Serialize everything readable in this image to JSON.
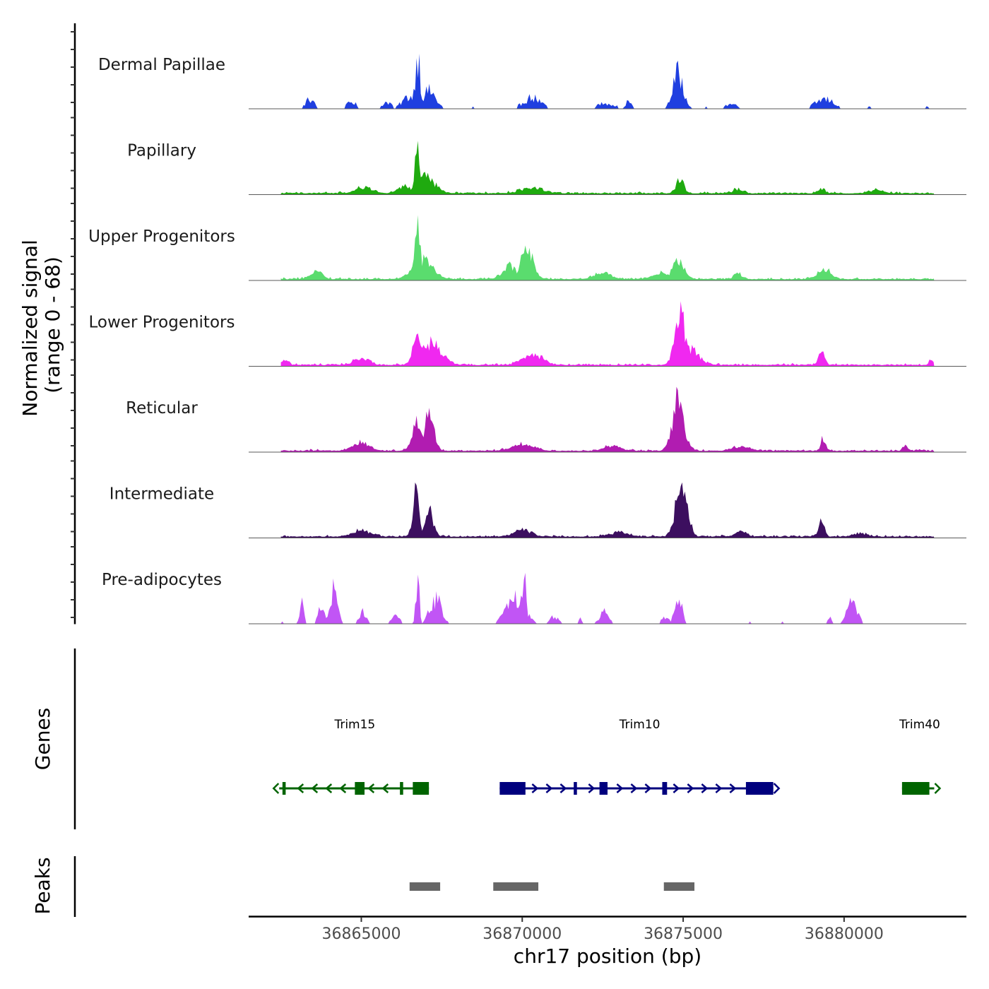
{
  "chart_data": {
    "type": "coverage-track",
    "y_axis": {
      "title_line1": "Normalized signal",
      "title_line2": "(range 0 - 68)",
      "range": [
        0,
        68
      ]
    },
    "x_axis": {
      "title": "chr17 position (bp)",
      "range": [
        36861500,
        36883800
      ],
      "ticks": [
        {
          "value": 36865000,
          "label": "36865000"
        },
        {
          "value": 36870000,
          "label": "36870000"
        },
        {
          "value": 36875000,
          "label": "36875000"
        },
        {
          "value": 36880000,
          "label": "36880000"
        }
      ]
    },
    "data_start": 36862500,
    "data_end": 36882800,
    "tracks": [
      {
        "name": "Dermal Papillae",
        "color": "#1f3fe0",
        "sparse": true,
        "peaks": [
          {
            "pos": 36866750,
            "h": 1.0,
            "w": 80
          },
          {
            "pos": 36866500,
            "h": 0.22,
            "w": 220
          },
          {
            "pos": 36867100,
            "h": 0.32,
            "w": 200
          },
          {
            "pos": 36874850,
            "h": 0.62,
            "w": 170
          },
          {
            "pos": 36863400,
            "h": 0.17,
            "w": 130
          },
          {
            "pos": 36864700,
            "h": 0.12,
            "w": 140
          },
          {
            "pos": 36865800,
            "h": 0.12,
            "w": 140
          },
          {
            "pos": 36870300,
            "h": 0.2,
            "w": 260
          },
          {
            "pos": 36872600,
            "h": 0.1,
            "w": 260
          },
          {
            "pos": 36873300,
            "h": 0.13,
            "w": 90
          },
          {
            "pos": 36876500,
            "h": 0.08,
            "w": 200
          },
          {
            "pos": 36879400,
            "h": 0.17,
            "w": 280
          },
          {
            "pos": 36882600,
            "h": 0.05,
            "w": 60
          }
        ]
      },
      {
        "name": "Papillary",
        "color": "#1faa0f",
        "sparse": false,
        "peaks": [
          {
            "pos": 36866750,
            "h": 1.0,
            "w": 70
          },
          {
            "pos": 36867000,
            "h": 0.3,
            "w": 280
          },
          {
            "pos": 36866350,
            "h": 0.12,
            "w": 200
          },
          {
            "pos": 36865100,
            "h": 0.1,
            "w": 260
          },
          {
            "pos": 36870300,
            "h": 0.11,
            "w": 320
          },
          {
            "pos": 36874900,
            "h": 0.28,
            "w": 110
          },
          {
            "pos": 36876700,
            "h": 0.08,
            "w": 140
          },
          {
            "pos": 36879300,
            "h": 0.09,
            "w": 90
          },
          {
            "pos": 36881000,
            "h": 0.06,
            "w": 200
          }
        ]
      },
      {
        "name": "Upper Progenitors",
        "color": "#5adc6e",
        "sparse": false,
        "peaks": [
          {
            "pos": 36866750,
            "h": 0.95,
            "w": 90
          },
          {
            "pos": 36866900,
            "h": 0.35,
            "w": 300
          },
          {
            "pos": 36870150,
            "h": 0.52,
            "w": 190
          },
          {
            "pos": 36869600,
            "h": 0.22,
            "w": 220
          },
          {
            "pos": 36863600,
            "h": 0.18,
            "w": 160
          },
          {
            "pos": 36874850,
            "h": 0.3,
            "w": 190
          },
          {
            "pos": 36874300,
            "h": 0.1,
            "w": 220
          },
          {
            "pos": 36876700,
            "h": 0.11,
            "w": 120
          },
          {
            "pos": 36879400,
            "h": 0.17,
            "w": 200
          },
          {
            "pos": 36872500,
            "h": 0.11,
            "w": 260
          }
        ]
      },
      {
        "name": "Lower Progenitors",
        "color": "#f028f0",
        "sparse": false,
        "peaks": [
          {
            "pos": 36874900,
            "h": 1.0,
            "w": 150
          },
          {
            "pos": 36875200,
            "h": 0.3,
            "w": 260
          },
          {
            "pos": 36866750,
            "h": 0.54,
            "w": 140
          },
          {
            "pos": 36867200,
            "h": 0.4,
            "w": 300
          },
          {
            "pos": 36870300,
            "h": 0.2,
            "w": 300
          },
          {
            "pos": 36879300,
            "h": 0.23,
            "w": 90
          },
          {
            "pos": 36865000,
            "h": 0.13,
            "w": 220
          },
          {
            "pos": 36862650,
            "h": 0.1,
            "w": 90
          },
          {
            "pos": 36882700,
            "h": 0.09,
            "w": 70
          }
        ]
      },
      {
        "name": "Reticular",
        "color": "#b11cb1",
        "sparse": false,
        "peaks": [
          {
            "pos": 36874850,
            "h": 0.95,
            "w": 170
          },
          {
            "pos": 36866700,
            "h": 0.56,
            "w": 130
          },
          {
            "pos": 36867100,
            "h": 0.65,
            "w": 150
          },
          {
            "pos": 36879350,
            "h": 0.24,
            "w": 70
          },
          {
            "pos": 36881900,
            "h": 0.12,
            "w": 70
          },
          {
            "pos": 36865000,
            "h": 0.15,
            "w": 260
          },
          {
            "pos": 36870000,
            "h": 0.12,
            "w": 320
          },
          {
            "pos": 36872800,
            "h": 0.09,
            "w": 240
          },
          {
            "pos": 36876800,
            "h": 0.08,
            "w": 240
          }
        ]
      },
      {
        "name": "Intermediate",
        "color": "#3c0f5f",
        "sparse": false,
        "peaks": [
          {
            "pos": 36874950,
            "h": 1.0,
            "w": 170
          },
          {
            "pos": 36866700,
            "h": 0.77,
            "w": 100
          },
          {
            "pos": 36867100,
            "h": 0.5,
            "w": 130
          },
          {
            "pos": 36879300,
            "h": 0.37,
            "w": 80
          },
          {
            "pos": 36865000,
            "h": 0.12,
            "w": 260
          },
          {
            "pos": 36870000,
            "h": 0.13,
            "w": 260
          },
          {
            "pos": 36873000,
            "h": 0.08,
            "w": 260
          },
          {
            "pos": 36876800,
            "h": 0.1,
            "w": 160
          },
          {
            "pos": 36880500,
            "h": 0.06,
            "w": 200
          }
        ]
      },
      {
        "name": "Pre-adipocytes",
        "color": "#c155f5",
        "sparse": true,
        "peaks": [
          {
            "pos": 36866750,
            "h": 0.98,
            "w": 50
          },
          {
            "pos": 36867300,
            "h": 0.45,
            "w": 180
          },
          {
            "pos": 36870050,
            "h": 0.86,
            "w": 60
          },
          {
            "pos": 36869800,
            "h": 0.45,
            "w": 280
          },
          {
            "pos": 36864150,
            "h": 0.62,
            "w": 110
          },
          {
            "pos": 36863750,
            "h": 0.36,
            "w": 90
          },
          {
            "pos": 36863150,
            "h": 0.35,
            "w": 60
          },
          {
            "pos": 36865050,
            "h": 0.22,
            "w": 110
          },
          {
            "pos": 36866050,
            "h": 0.12,
            "w": 140
          },
          {
            "pos": 36874850,
            "h": 0.48,
            "w": 110
          },
          {
            "pos": 36874450,
            "h": 0.12,
            "w": 110
          },
          {
            "pos": 36872550,
            "h": 0.22,
            "w": 130
          },
          {
            "pos": 36871800,
            "h": 0.1,
            "w": 60
          },
          {
            "pos": 36880250,
            "h": 0.36,
            "w": 160
          },
          {
            "pos": 36879550,
            "h": 0.1,
            "w": 60
          },
          {
            "pos": 36871000,
            "h": 0.12,
            "w": 140
          }
        ]
      }
    ],
    "genes": {
      "title": "Genes",
      "items": [
        {
          "name": "Trim15",
          "strand": "-",
          "start": 36862450,
          "end": 36867100,
          "color": "#006400",
          "label_pos": 36864800,
          "exons": [
            [
              36862550,
              36862650
            ],
            [
              36864800,
              36865100
            ],
            [
              36866200,
              36866300
            ],
            [
              36866600,
              36867100
            ]
          ]
        },
        {
          "name": "Trim10",
          "strand": "+",
          "start": 36869300,
          "end": 36877800,
          "color": "#00007e",
          "label_pos": 36873650,
          "exons": [
            [
              36869300,
              36870100
            ],
            [
              36871600,
              36871700
            ],
            [
              36872400,
              36872650
            ],
            [
              36874350,
              36874500
            ],
            [
              36876950,
              36877800
            ]
          ]
        },
        {
          "name": "Trim40",
          "strand": "+",
          "start": 36881800,
          "end": 36882800,
          "color": "#006400",
          "label_pos": 36882350,
          "exons": [
            [
              36881800,
              36882650
            ]
          ]
        }
      ]
    },
    "peaks_track": {
      "title": "Peaks",
      "color": "#666666",
      "regions": [
        [
          36866500,
          36867450
        ],
        [
          36869100,
          36870500
        ],
        [
          36874400,
          36875350
        ]
      ]
    }
  }
}
